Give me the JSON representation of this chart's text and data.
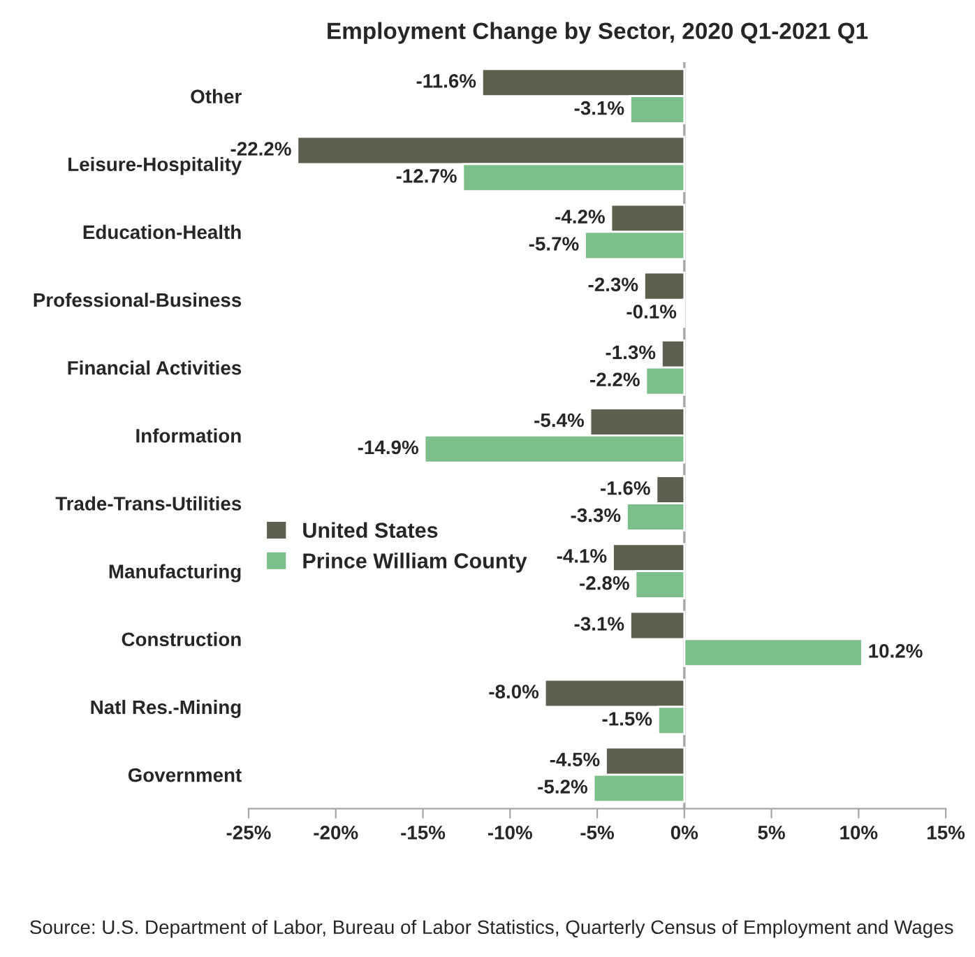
{
  "chart_data": {
    "type": "bar",
    "orientation": "horizontal",
    "title": "Employment Change by Sector, 2020 Q1-2021 Q1",
    "categories": [
      "Other",
      "Leisure-Hospitality",
      "Education-Health",
      "Professional-Business",
      "Financial Activities",
      "Information",
      "Trade-Trans-Utilities",
      "Manufacturing",
      "Construction",
      "Natl Res.-Mining",
      "Government"
    ],
    "series": [
      {
        "name": "United States",
        "color": "#5f5f50",
        "values": [
          -11.6,
          -22.2,
          -4.2,
          -2.3,
          -1.3,
          -5.4,
          -1.6,
          -4.1,
          -3.1,
          -8.0,
          -4.5
        ],
        "value_labels": [
          "-11.6%",
          "-22.2%",
          "-4.2%",
          "-2.3%",
          "-1.3%",
          "-5.4%",
          "-1.6%",
          "-4.1%",
          "-3.1%",
          "-8.0%",
          "-4.5%"
        ]
      },
      {
        "name": "Prince William County",
        "color": "#7cbf8a",
        "values": [
          -3.1,
          -12.7,
          -5.7,
          -0.1,
          -2.2,
          -14.9,
          -3.3,
          -2.8,
          10.2,
          -1.5,
          -5.2
        ],
        "value_labels": [
          "-3.1%",
          "-12.7%",
          "-5.7%",
          "-0.1%",
          "-2.2%",
          "-14.9%",
          "-3.3%",
          "-2.8%",
          "10.2%",
          "-1.5%",
          "-5.2%"
        ]
      }
    ],
    "xlim": [
      -25,
      15
    ],
    "xticks": [
      {
        "value": -25,
        "label": "-25%"
      },
      {
        "value": -20,
        "label": "-20%"
      },
      {
        "value": -15,
        "label": "-15%"
      },
      {
        "value": -10,
        "label": "-10%"
      },
      {
        "value": -5,
        "label": "-5%"
      },
      {
        "value": 0,
        "label": "0%"
      },
      {
        "value": 5,
        "label": "5%"
      },
      {
        "value": 10,
        "label": "10%"
      },
      {
        "value": 15,
        "label": "15%"
      }
    ],
    "ref_lines": [
      {
        "axis": "x",
        "value": 0,
        "color": "#a6a6a6"
      }
    ],
    "grid": false,
    "legend": "left",
    "annotations": [
      "Source: U.S. Department of Labor, Bureau of Labor Statistics, Quarterly Census of Employment and Wages"
    ]
  }
}
